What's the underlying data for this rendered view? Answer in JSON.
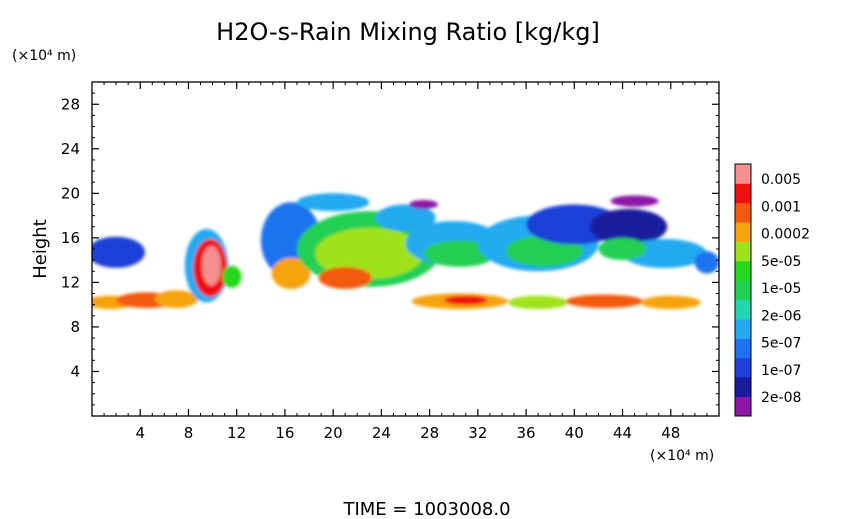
{
  "chart_data": {
    "type": "heatmap",
    "title": "H2O-s-Rain Mixing Ratio [kg/kg]",
    "xlabel": "",
    "ylabel": "Height",
    "x_unit": "(×10⁴ m)",
    "y_unit": "(×10⁴ m)",
    "xlim": [
      0,
      52
    ],
    "ylim": [
      0,
      30
    ],
    "x_ticks": [
      "4",
      "8",
      "12",
      "16",
      "20",
      "24",
      "28",
      "32",
      "36",
      "40",
      "44",
      "48"
    ],
    "y_ticks": [
      "4",
      "8",
      "12",
      "16",
      "20",
      "24",
      "28"
    ],
    "footer": "TIME = 1003008.0",
    "colorbar": {
      "colors": [
        "#8b16a8",
        "#1b1b9e",
        "#1e3fd8",
        "#1f73f0",
        "#23a9f0",
        "#22d6b4",
        "#21cf52",
        "#27d81a",
        "#9fe21b",
        "#f5a30c",
        "#f25a10",
        "#f01010",
        "#f49090"
      ],
      "labels": [
        "2e-08",
        "1e-07",
        "5e-07",
        "2e-06",
        "1e-05",
        "5e-05",
        "0.0002",
        "0.001",
        "0.005"
      ]
    },
    "series": [
      {
        "values": [
          {
            "x": 2.0,
            "y": 14.7,
            "rx": 2.4,
            "ry": 1.4,
            "level": 2
          },
          {
            "x": 1.5,
            "y": 10.2,
            "rx": 2.0,
            "ry": 0.6,
            "level": 9
          },
          {
            "x": 4.5,
            "y": 10.4,
            "rx": 2.5,
            "ry": 0.7,
            "level": 10
          },
          {
            "x": 7.0,
            "y": 10.5,
            "rx": 1.8,
            "ry": 0.8,
            "level": 9
          },
          {
            "x": 9.5,
            "y": 13.5,
            "rx": 1.8,
            "ry": 3.3,
            "level": 4
          },
          {
            "x": 9.8,
            "y": 13.3,
            "rx": 1.4,
            "ry": 2.6,
            "level": 11
          },
          {
            "x": 9.9,
            "y": 13.5,
            "rx": 0.8,
            "ry": 1.8,
            "level": 12
          },
          {
            "x": 11.6,
            "y": 12.5,
            "rx": 0.8,
            "ry": 1.0,
            "level": 7
          },
          {
            "x": 16.5,
            "y": 15.8,
            "rx": 2.5,
            "ry": 3.4,
            "level": 3
          },
          {
            "x": 20.0,
            "y": 19.2,
            "rx": 3.0,
            "ry": 0.8,
            "level": 4
          },
          {
            "x": 16.5,
            "y": 12.8,
            "rx": 1.6,
            "ry": 1.4,
            "level": 9
          },
          {
            "x": 23.0,
            "y": 15.0,
            "rx": 6.0,
            "ry": 3.4,
            "level": 6
          },
          {
            "x": 23.0,
            "y": 14.6,
            "rx": 4.5,
            "ry": 2.3,
            "level": 8
          },
          {
            "x": 21.0,
            "y": 12.4,
            "rx": 2.2,
            "ry": 1.0,
            "level": 10
          },
          {
            "x": 26.0,
            "y": 17.8,
            "rx": 2.5,
            "ry": 1.2,
            "level": 4
          },
          {
            "x": 30.0,
            "y": 15.5,
            "rx": 4.0,
            "ry": 2.0,
            "level": 4
          },
          {
            "x": 30.5,
            "y": 14.6,
            "rx": 3.0,
            "ry": 1.2,
            "level": 6
          },
          {
            "x": 37.0,
            "y": 15.5,
            "rx": 5.0,
            "ry": 2.5,
            "level": 4
          },
          {
            "x": 37.5,
            "y": 14.8,
            "rx": 3.2,
            "ry": 1.4,
            "level": 6
          },
          {
            "x": 40.0,
            "y": 17.2,
            "rx": 4.0,
            "ry": 1.8,
            "level": 2
          },
          {
            "x": 44.5,
            "y": 17.0,
            "rx": 3.2,
            "ry": 1.6,
            "level": 1
          },
          {
            "x": 47.5,
            "y": 14.6,
            "rx": 3.5,
            "ry": 1.3,
            "level": 4
          },
          {
            "x": 44.0,
            "y": 15.0,
            "rx": 2.0,
            "ry": 1.0,
            "level": 6
          },
          {
            "x": 51.0,
            "y": 13.8,
            "rx": 1.0,
            "ry": 1.0,
            "level": 3
          },
          {
            "x": 30.5,
            "y": 10.3,
            "rx": 4.0,
            "ry": 0.7,
            "level": 9
          },
          {
            "x": 31.0,
            "y": 10.4,
            "rx": 1.8,
            "ry": 0.4,
            "level": 11
          },
          {
            "x": 37.0,
            "y": 10.2,
            "rx": 2.5,
            "ry": 0.6,
            "level": 8
          },
          {
            "x": 42.5,
            "y": 10.3,
            "rx": 3.2,
            "ry": 0.6,
            "level": 10
          },
          {
            "x": 48.0,
            "y": 10.2,
            "rx": 2.5,
            "ry": 0.6,
            "level": 9
          },
          {
            "x": 45.0,
            "y": 19.3,
            "rx": 2.0,
            "ry": 0.5,
            "level": 0
          },
          {
            "x": 27.5,
            "y": 19.0,
            "rx": 1.2,
            "ry": 0.4,
            "level": 0
          }
        ]
      }
    ]
  }
}
